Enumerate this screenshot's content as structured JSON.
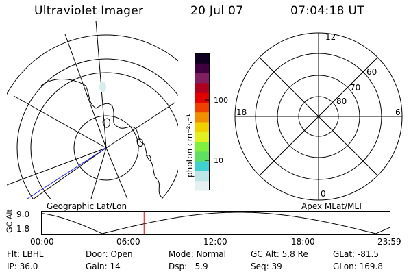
{
  "header": {
    "instrument": "Ultraviolet Imager",
    "date": "20 Jul 07",
    "time": "07:04:18 UT"
  },
  "colorbar": {
    "unit_label": "photon cm⁻²s⁻¹",
    "ticks": [
      "100",
      "10"
    ],
    "colors": [
      "#e6f0f0",
      "#bfe6e6",
      "#40d0d0",
      "#60e060",
      "#80f040",
      "#e0f020",
      "#f0d000",
      "#f09000",
      "#f04000",
      "#e00000",
      "#b00020",
      "#802060",
      "#400040",
      "#100020"
    ]
  },
  "left_map": {
    "caption": "Geographic Lat/Lon",
    "line_color": "#000000",
    "track_color": "#2020e0"
  },
  "right_map": {
    "caption": "Apex MLat/MLT",
    "mlt_labels": {
      "top": "12",
      "left": "18",
      "right": "6",
      "bottom": "0"
    },
    "lat_labels": [
      "60",
      "70",
      "80"
    ]
  },
  "altitude_plot": {
    "ylabel": "GC Alt",
    "ymax_label": "9.0",
    "ymin_label": "1.8",
    "ymin": 1.8,
    "ymax": 9.0,
    "x_ticks": [
      "00:00",
      "06:00",
      "12:00",
      "18:00",
      "23:59"
    ],
    "current_time_hours": 7.07,
    "marker_color": "#e00000",
    "dip_hours": [
      4.2,
      23.0
    ]
  },
  "status": {
    "row1": [
      {
        "label": "Flt:",
        "value": "LBHL"
      },
      {
        "label": "Door:",
        "value": "Open"
      },
      {
        "label": "Mode:",
        "value": "Normal"
      },
      {
        "label": "GC Alt:",
        "value": "5.8 Re"
      },
      {
        "label": "GLat:",
        "value": "-81.5"
      }
    ],
    "row2": [
      {
        "label": "IP:",
        "value": "36.0"
      },
      {
        "label": "Gain:",
        "value": "14"
      },
      {
        "label": "Dsp:",
        "value": "5.9"
      },
      {
        "label": "Seq:",
        "value": "39"
      },
      {
        "label": "GLon:",
        "value": "169.8"
      }
    ]
  }
}
